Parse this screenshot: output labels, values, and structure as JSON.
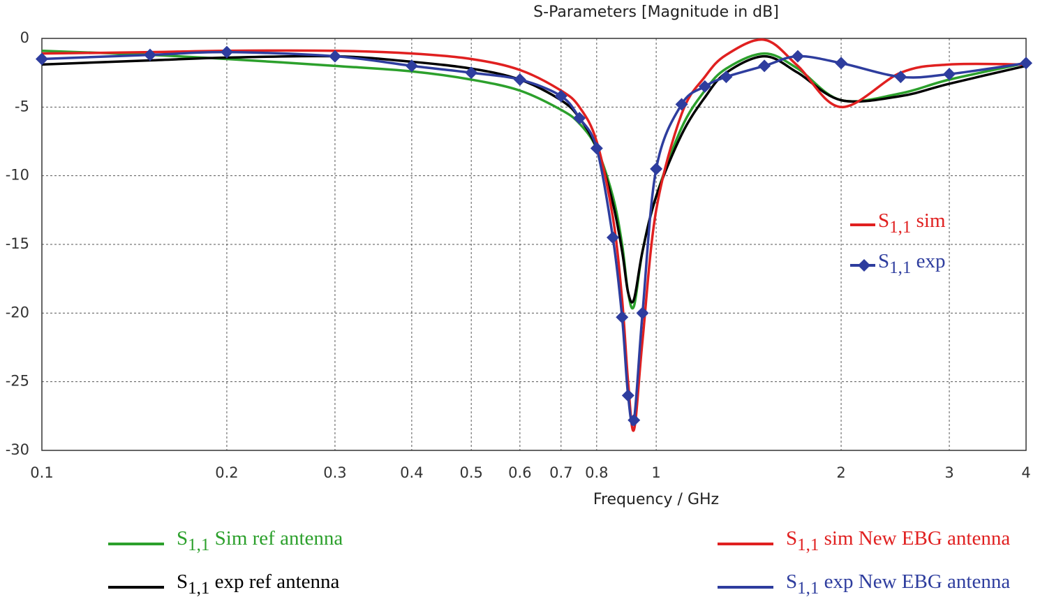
{
  "chart_data": {
    "type": "line",
    "title": "S-Parameters [Magnitude in dB]",
    "x_label": "Frequency / GHz",
    "x_log": true,
    "grid": true,
    "xlim": [
      0.1,
      4
    ],
    "ylim": [
      -30,
      0
    ],
    "xticks": [
      0.1,
      0.2,
      0.3,
      0.4,
      0.5,
      0.6,
      0.7,
      0.8,
      1,
      2,
      3,
      4
    ],
    "yticks": [
      0,
      -5,
      -10,
      -15,
      -20,
      -25,
      -30
    ],
    "x": [
      0.1,
      0.15,
      0.2,
      0.3,
      0.4,
      0.5,
      0.6,
      0.7,
      0.75,
      0.8,
      0.85,
      0.88,
      0.9,
      0.92,
      0.95,
      1.0,
      1.1,
      1.2,
      1.3,
      1.5,
      1.7,
      2.0,
      2.5,
      3.0,
      4.0
    ],
    "series": [
      {
        "name": "S1,1 Sim ref antenna",
        "color": "#2ca02c",
        "values": [
          -0.9,
          -1.2,
          -1.5,
          -2.0,
          -2.4,
          -3.0,
          -3.8,
          -5.2,
          -6.2,
          -8.0,
          -11.5,
          -15,
          -18.5,
          -19.5,
          -15.5,
          -11.5,
          -6.5,
          -3.8,
          -2.2,
          -1.1,
          -2.2,
          -4.5,
          -4.0,
          -3.0,
          -1.8
        ]
      },
      {
        "name": "S1,1 exp ref antenna",
        "color": "#000000",
        "values": [
          -1.9,
          -1.6,
          -1.4,
          -1.3,
          -1.7,
          -2.2,
          -3.0,
          -4.5,
          -5.8,
          -8.0,
          -12,
          -15.5,
          -18.5,
          -19,
          -15.5,
          -11.5,
          -7,
          -4.3,
          -2.5,
          -1.3,
          -2.5,
          -4.5,
          -4.2,
          -3.3,
          -2.0
        ]
      },
      {
        "name": "S1,1 sim New EBG antenna",
        "color": "#e02020",
        "values": [
          -1.1,
          -1.0,
          -0.9,
          -0.9,
          -1.1,
          -1.5,
          -2.3,
          -3.8,
          -5.0,
          -7.5,
          -13,
          -19,
          -25,
          -28.5,
          -22,
          -12.5,
          -5.5,
          -2.8,
          -1.2,
          -0.1,
          -2.0,
          -5.0,
          -2.5,
          -1.9,
          -1.9
        ]
      },
      {
        "name": "S1,1 exp New EBG antenna",
        "color": "#2e3d9e",
        "marker": "diamond",
        "values": [
          -1.5,
          -1.2,
          -1.0,
          -1.3,
          -2.0,
          -2.5,
          -3.0,
          -4.2,
          -5.8,
          -8.0,
          -14.5,
          -20.3,
          -26,
          -27.8,
          -20,
          -9.5,
          -4.8,
          -3.5,
          -2.8,
          -2.0,
          -1.3,
          -1.8,
          -2.8,
          -2.6,
          -1.8
        ]
      }
    ],
    "inner_legend": [
      {
        "name": "S1,1 sim",
        "color": "#e02020"
      },
      {
        "name": "S1,1 exp",
        "color": "#2e3d9e",
        "marker": "diamond"
      }
    ]
  }
}
